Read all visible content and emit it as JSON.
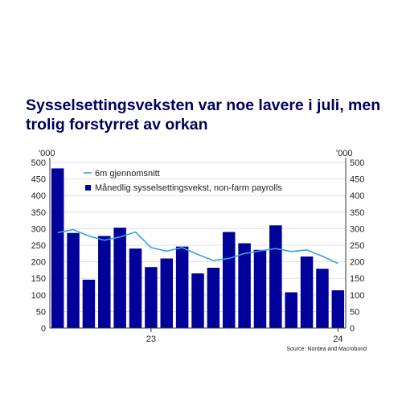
{
  "title": "Sysselsettingsveksten var noe lavere i juli, men trolig forstyrret av orkan",
  "source": "Source: Nordea and Macrobond",
  "chart_data": {
    "type": "bar",
    "left_unit": "'000",
    "right_unit": "'000",
    "y_ticks": [
      0,
      50,
      100,
      150,
      200,
      250,
      300,
      350,
      400,
      450,
      500
    ],
    "ylim": [
      0,
      500
    ],
    "x_tick_labels": [
      {
        "label": "23",
        "after_index": 6
      },
      {
        "label": "24",
        "after_index": 18
      }
    ],
    "grid": true,
    "legend": "top-left",
    "series": [
      {
        "name": "Månedlig sysselsettingsvekst, non-farm payrolls",
        "type": "bar",
        "color": "#00009a",
        "values": [
          482,
          287,
          146,
          278,
          303,
          240,
          184,
          210,
          246,
          165,
          182,
          290,
          256,
          236,
          310,
          108,
          216,
          179,
          114
        ]
      },
      {
        "name": "6m gjennomsnitt",
        "type": "line",
        "color": "#3aa0e0",
        "values": [
          288,
          297,
          278,
          265,
          275,
          290,
          243,
          232,
          243,
          222,
          204,
          210,
          225,
          233,
          240,
          231,
          236,
          217,
          195
        ]
      }
    ]
  }
}
